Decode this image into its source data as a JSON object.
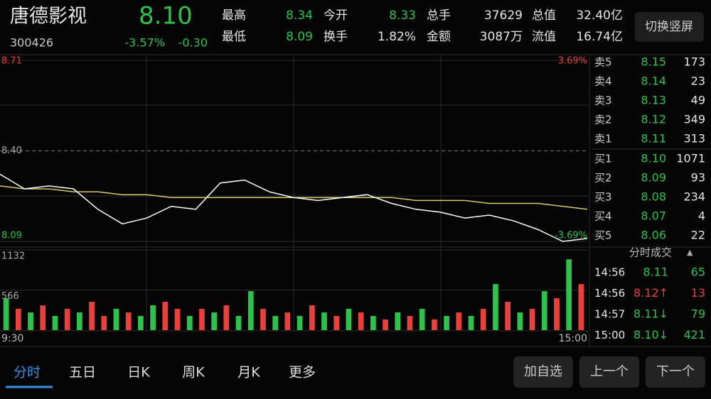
{
  "header": {
    "name": "唐德影视",
    "code": "300426",
    "price": "8.10",
    "change_pct": "-3.57%",
    "change": "-0.30",
    "button": "切换竖屏",
    "stats": [
      [
        {
          "label": "最高",
          "value": "8.34"
        },
        {
          "label": "今开",
          "value": "8.33"
        },
        {
          "label": "总手",
          "value": "37629"
        },
        {
          "label": "总值",
          "value": "32.40亿"
        }
      ],
      [
        {
          "label": "最低",
          "value": "8.09"
        },
        {
          "label": "换手",
          "value": "1.82%"
        },
        {
          "label": "金额",
          "value": "3087万"
        },
        {
          "label": "流值",
          "value": "16.74亿"
        }
      ]
    ]
  },
  "chart_data": [
    {
      "type": "line",
      "x": [
        0,
        10,
        20,
        30,
        40,
        50,
        60,
        70,
        80,
        90,
        100,
        110,
        120,
        130,
        140,
        150,
        160,
        170,
        180,
        190,
        200,
        210,
        220,
        230,
        240
      ],
      "xlim": [
        0,
        240
      ],
      "ylim": [
        8.09,
        8.71
      ],
      "yticks": [
        8.71,
        {
          "value": 8.4,
          "label": "8.40"
        },
        8.09
      ],
      "y2lim": [
        -3.69,
        3.69
      ],
      "y2ticks": [
        {
          "value": 3.69,
          "label": "3.69%"
        },
        {
          "value": -3.69,
          "label": "-3.69%"
        }
      ],
      "series": [
        {
          "color": "#ffffff",
          "values": [
            8.32,
            8.27,
            8.28,
            8.27,
            8.2,
            8.15,
            8.17,
            8.21,
            8.2,
            8.29,
            8.3,
            8.26,
            8.24,
            8.23,
            8.24,
            8.25,
            8.22,
            8.2,
            8.19,
            8.17,
            8.18,
            8.16,
            8.13,
            8.09,
            8.1
          ]
        },
        {
          "color": "#d8c96a",
          "values": [
            8.28,
            8.27,
            8.27,
            8.26,
            8.26,
            8.25,
            8.25,
            8.24,
            8.24,
            8.24,
            8.24,
            8.24,
            8.24,
            8.24,
            8.24,
            8.24,
            8.24,
            8.23,
            8.23,
            8.23,
            8.22,
            8.22,
            8.22,
            8.21,
            8.2
          ]
        }
      ]
    },
    {
      "type": "bar",
      "x": [
        2.5,
        7.5,
        12.5,
        17.5,
        22.5,
        27.5,
        32.5,
        37.5,
        42.5,
        47.5,
        52.5,
        57.5,
        62.5,
        67.5,
        72.5,
        77.5,
        82.5,
        87.5,
        92.5,
        97.5,
        102.5,
        107.5,
        112.5,
        117.5,
        122.5,
        127.5,
        132.5,
        137.5,
        142.5,
        147.5,
        152.5,
        157.5,
        162.5,
        167.5,
        172.5,
        177.5,
        182.5,
        187.5,
        192.5,
        197.5,
        202.5,
        207.5,
        212.5,
        217.5,
        222.5,
        227.5,
        232.5,
        237.5
      ],
      "xlim": [
        0,
        240
      ],
      "xticks": [
        {
          "value": 0,
          "label": "9:30"
        },
        {
          "value": 240,
          "label": "15:00"
        }
      ],
      "ylim": [
        0,
        1132
      ],
      "yticks": [
        1132,
        566
      ],
      "values": [
        450,
        300,
        250,
        350,
        200,
        300,
        250,
        400,
        200,
        300,
        250,
        200,
        350,
        400,
        300,
        200,
        300,
        250,
        350,
        200,
        550,
        300,
        200,
        250,
        200,
        350,
        250,
        200,
        300,
        250,
        200,
        150,
        250,
        200,
        300,
        150,
        200,
        250,
        200,
        300,
        650,
        400,
        250,
        300,
        550,
        450,
        1000,
        650
      ],
      "colors": [
        "#2ec24b",
        "#e8413b",
        "#2ec24b",
        "#e8413b",
        "#2ec24b",
        "#e8413b",
        "#2ec24b",
        "#e8413b",
        "#e8413b",
        "#2ec24b",
        "#e8413b",
        "#2ec24b",
        "#2ec24b",
        "#e8413b",
        "#e8413b",
        "#2ec24b",
        "#e8413b",
        "#2ec24b",
        "#e8413b",
        "#2ec24b",
        "#2ec24b",
        "#e8413b",
        "#2ec24b",
        "#e8413b",
        "#2ec24b",
        "#e8413b",
        "#2ec24b",
        "#e8413b",
        "#2ec24b",
        "#e8413b",
        "#2ec24b",
        "#e8413b",
        "#2ec24b",
        "#e8413b",
        "#2ec24b",
        "#e8413b",
        "#2ec24b",
        "#e8413b",
        "#2ec24b",
        "#e8413b",
        "#2ec24b",
        "#e8413b",
        "#2ec24b",
        "#e8413b",
        "#2ec24b",
        "#e8413b",
        "#2ec24b",
        "#e8413b"
      ]
    }
  ],
  "order_book": {
    "asks": [
      {
        "label": "卖5",
        "price": "8.15",
        "volume": "173"
      },
      {
        "label": "卖4",
        "price": "8.14",
        "volume": "23"
      },
      {
        "label": "卖3",
        "price": "8.13",
        "volume": "49"
      },
      {
        "label": "卖2",
        "price": "8.12",
        "volume": "349"
      },
      {
        "label": "卖1",
        "price": "8.11",
        "volume": "313"
      }
    ],
    "bids": [
      {
        "label": "买1",
        "price": "8.10",
        "volume": "1071"
      },
      {
        "label": "买2",
        "price": "8.09",
        "volume": "93"
      },
      {
        "label": "买3",
        "price": "8.08",
        "volume": "234"
      },
      {
        "label": "买4",
        "price": "8.07",
        "volume": "4"
      },
      {
        "label": "买5",
        "price": "8.06",
        "volume": "22"
      }
    ]
  },
  "trades": {
    "title": "分时成交",
    "rows": [
      {
        "time": "14:56",
        "price": "8.11",
        "volume": "65"
      },
      {
        "time": "14:56",
        "price": "8.12↑",
        "volume": "13"
      },
      {
        "time": "14:57",
        "price": "8.11↓",
        "volume": "79"
      },
      {
        "time": "15:00",
        "price": "8.10↓",
        "volume": "421"
      }
    ]
  },
  "tabs": [
    "分时",
    "五日",
    "日K",
    "周K",
    "月K",
    "更多"
  ],
  "buttons": [
    "加自选",
    "上一个",
    "下一个"
  ]
}
